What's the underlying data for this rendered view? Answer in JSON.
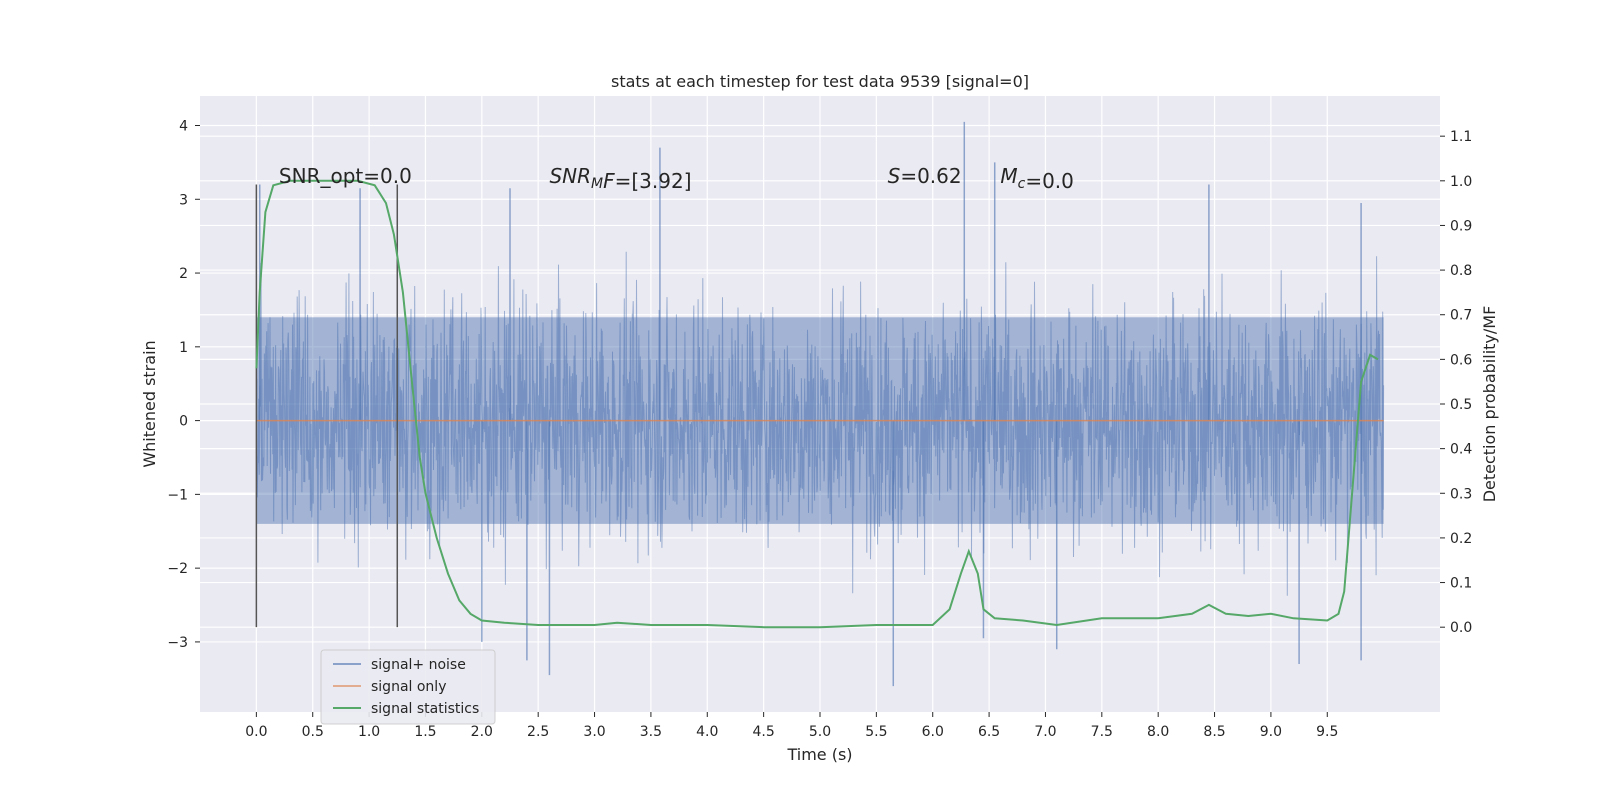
{
  "chart_data": {
    "type": "line",
    "title": "stats at each timestep for test data 9539 [signal=0]",
    "xlabel": "Time (s)",
    "ylabel": "Whitened strain",
    "y2label": "Detection probability/MF",
    "xlim": [
      -0.5,
      10.5
    ],
    "ylim": [
      -3.95,
      4.4
    ],
    "y2lim": [
      -0.19,
      1.19
    ],
    "xticks": [
      "0.0",
      "0.5",
      "1.0",
      "1.5",
      "2.0",
      "2.5",
      "3.0",
      "3.5",
      "4.0",
      "4.5",
      "5.0",
      "5.5",
      "6.0",
      "6.5",
      "7.0",
      "7.5",
      "8.0",
      "8.5",
      "9.0",
      "9.5"
    ],
    "yticks": [
      "−3",
      "−2",
      "−1",
      "0",
      "1",
      "2",
      "3",
      "4"
    ],
    "y2ticks": [
      "0.0",
      "0.1",
      "0.2",
      "0.3",
      "0.4",
      "0.5",
      "0.6",
      "0.7",
      "0.8",
      "0.9",
      "1.0",
      "1.1"
    ],
    "grid": true,
    "legend_position": "lower-left",
    "colors": {
      "signal_noise": "#4c72b0",
      "signal_only": "#dd8452",
      "signal_statistics": "#55a868",
      "background": "#eaeaf2",
      "vlines": "#555555"
    },
    "series": [
      {
        "name": "signal+ noise",
        "description": "whitened strain noise, approx. std 0.8 over t = 0.0–10.0 s",
        "x_range": [
          0.0,
          10.0
        ],
        "core_band": [
          -1.4,
          1.4
        ],
        "extremes": [
          {
            "x": 0.03,
            "y": 3.2
          },
          {
            "x": 0.92,
            "y": 3.15
          },
          {
            "x": 2.25,
            "y": 3.15
          },
          {
            "x": 3.58,
            "y": 3.7
          },
          {
            "x": 6.28,
            "y": 4.05
          },
          {
            "x": 6.55,
            "y": 3.5
          },
          {
            "x": 8.45,
            "y": 3.2
          },
          {
            "x": 9.8,
            "y": 2.95
          },
          {
            "x": 2.0,
            "y": -3.0
          },
          {
            "x": 2.6,
            "y": -3.45
          },
          {
            "x": 2.4,
            "y": -3.25
          },
          {
            "x": 5.65,
            "y": -3.6
          },
          {
            "x": 9.25,
            "y": -3.3
          },
          {
            "x": 9.8,
            "y": -3.25
          },
          {
            "x": 7.1,
            "y": -3.1
          },
          {
            "x": 6.45,
            "y": -2.95
          }
        ]
      },
      {
        "name": "signal only",
        "x": [
          0.0,
          10.0
        ],
        "y": [
          0.0,
          0.0
        ]
      },
      {
        "name": "signal statistics",
        "axis": "right",
        "x": [
          0.0,
          0.03,
          0.08,
          0.15,
          0.3,
          0.5,
          0.7,
          0.9,
          1.05,
          1.15,
          1.22,
          1.3,
          1.38,
          1.45,
          1.5,
          1.6,
          1.7,
          1.8,
          1.9,
          2.0,
          2.2,
          2.5,
          3.0,
          3.2,
          3.5,
          4.0,
          4.5,
          5.0,
          5.5,
          6.0,
          6.15,
          6.25,
          6.32,
          6.4,
          6.45,
          6.55,
          6.8,
          7.1,
          7.5,
          8.0,
          8.3,
          8.45,
          8.6,
          8.8,
          9.0,
          9.2,
          9.5,
          9.6,
          9.65,
          9.72,
          9.8,
          9.88,
          9.95
        ],
        "y": [
          0.58,
          0.75,
          0.93,
          0.99,
          1.0,
          1.0,
          1.0,
          1.0,
          0.99,
          0.95,
          0.88,
          0.75,
          0.55,
          0.38,
          0.3,
          0.2,
          0.12,
          0.06,
          0.03,
          0.015,
          0.01,
          0.005,
          0.005,
          0.01,
          0.005,
          0.005,
          0.0,
          0.0,
          0.005,
          0.005,
          0.04,
          0.12,
          0.17,
          0.12,
          0.04,
          0.02,
          0.015,
          0.005,
          0.02,
          0.02,
          0.03,
          0.05,
          0.03,
          0.025,
          0.03,
          0.02,
          0.015,
          0.03,
          0.08,
          0.3,
          0.55,
          0.61,
          0.6
        ]
      }
    ],
    "vertical_lines": [
      {
        "x": 0.0,
        "y_range": [
          -2.8,
          3.2
        ]
      },
      {
        "x": 1.25,
        "y_range": [
          -2.8,
          3.2
        ]
      }
    ],
    "annotations": [
      {
        "id": "snr_opt",
        "text": "SNR_opt=0.0",
        "x": 0.2,
        "y": 3.3
      },
      {
        "id": "snr_mf",
        "text_italic": "SNR",
        "text_sub": "M",
        "text_italic2": "F",
        "text": "=[3.92]",
        "x": 2.6,
        "y": 3.3
      },
      {
        "id": "s",
        "text_italic": "S",
        "text": "=0.62",
        "x": 5.6,
        "y": 3.3
      },
      {
        "id": "mc",
        "text_italic": "M",
        "text_sub": "c",
        "text": "=0.0",
        "x": 6.6,
        "y": 3.3
      }
    ]
  }
}
